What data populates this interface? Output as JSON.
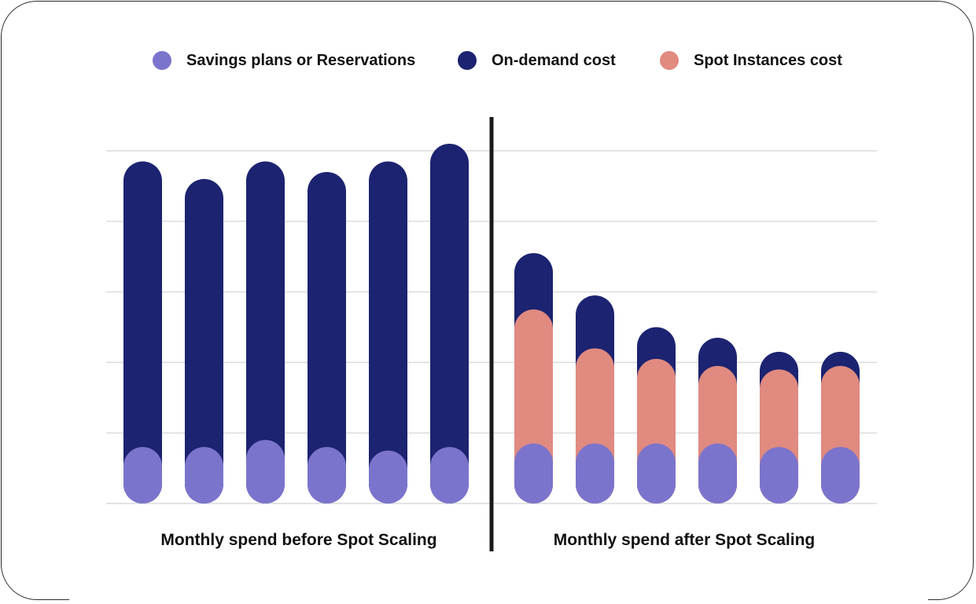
{
  "chart_data": {
    "type": "bar",
    "stacked": true,
    "legend": {
      "position": "top",
      "items": [
        {
          "name": "Savings plans or Reservations",
          "color": "#7b74cc"
        },
        {
          "name": "On-demand cost",
          "color": "#1c2370"
        },
        {
          "name": "Spot Instances cost",
          "color": "#e08a80"
        }
      ]
    },
    "groups": [
      {
        "label": "Monthly spend before Spot Scaling",
        "bars": 6
      },
      {
        "label": "Monthly spend after Spot Scaling",
        "bars": 6
      }
    ],
    "series": [
      {
        "name": "Savings plans or Reservations",
        "color": "#7b74cc",
        "values": [
          0.8,
          0.8,
          0.9,
          0.8,
          0.75,
          0.8,
          0.85,
          0.85,
          0.85,
          0.85,
          0.8,
          0.8
        ]
      },
      {
        "name": "Spot Instances cost",
        "color": "#e08a80",
        "values": [
          0,
          0,
          0,
          0,
          0,
          0,
          1.9,
          1.35,
          1.2,
          1.1,
          1.1,
          1.15
        ]
      },
      {
        "name": "On-demand cost",
        "color": "#1c2370",
        "values": [
          4.05,
          3.8,
          3.95,
          3.9,
          4.1,
          4.3,
          0.8,
          0.75,
          0.45,
          0.4,
          0.25,
          0.2
        ]
      }
    ],
    "ylim": [
      0,
      5
    ],
    "grid": true,
    "y_ticks_shown": false
  }
}
